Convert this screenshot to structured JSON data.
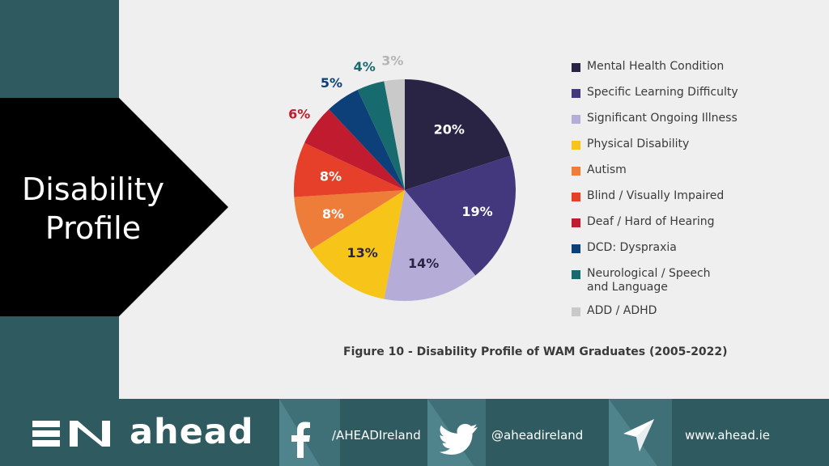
{
  "slide": {
    "title_line1": "Disability",
    "title_line2": "Profile"
  },
  "chart_data": {
    "type": "pie",
    "title": "Figure 10 - Disability Profile of WAM Graduates (2005-2022)",
    "legend_position": "right",
    "slices": [
      {
        "label": "Mental Health Condition",
        "value": 20,
        "value_label": "20%",
        "color": "#2a2444",
        "label_color": "#ffffff"
      },
      {
        "label": "Specific Learning Difficulty",
        "value": 19,
        "value_label": "19%",
        "color": "#43377e",
        "label_color": "#ffffff"
      },
      {
        "label": "Significant Ongoing Illness",
        "value": 14,
        "value_label": "14%",
        "color": "#b6acd8",
        "label_color": "#2a2444"
      },
      {
        "label": "Physical Disability",
        "value": 13,
        "value_label": "13%",
        "color": "#f7c41a",
        "label_color": "#2a2444"
      },
      {
        "label": "Autism",
        "value": 8,
        "value_label": "8%",
        "color": "#ee7d3a",
        "label_color": "#ffffff"
      },
      {
        "label": "Blind / Visually Impaired",
        "value": 8,
        "value_label": "8%",
        "color": "#e6402a",
        "label_color": "#ffffff"
      },
      {
        "label": "Deaf / Hard of Hearing",
        "value": 6,
        "value_label": "6%",
        "color": "#c11b2f",
        "label_color": "#c11b2f"
      },
      {
        "label": "DCD: Dyspraxia",
        "value": 5,
        "value_label": "5%",
        "color": "#0d3f78",
        "label_color": "#0d3f78"
      },
      {
        "label": "Neurological / Speech\nand Language",
        "value": 4,
        "value_label": "4%",
        "color": "#176a6e",
        "label_color": "#176a6e"
      },
      {
        "label": "ADD / ADHD",
        "value": 3,
        "value_label": "3%",
        "color": "#c9c9c9",
        "label_color": "#b5b5b5"
      }
    ]
  },
  "footer": {
    "brand": "ahead",
    "facebook_handle": "/AHEADIreland",
    "twitter_handle": "@aheadireland",
    "website": "www.ahead.ie",
    "colors": {
      "band_dark": "#2e5a60",
      "band_mid": "#4b7e86",
      "band_light": "#6b9aa2"
    }
  }
}
